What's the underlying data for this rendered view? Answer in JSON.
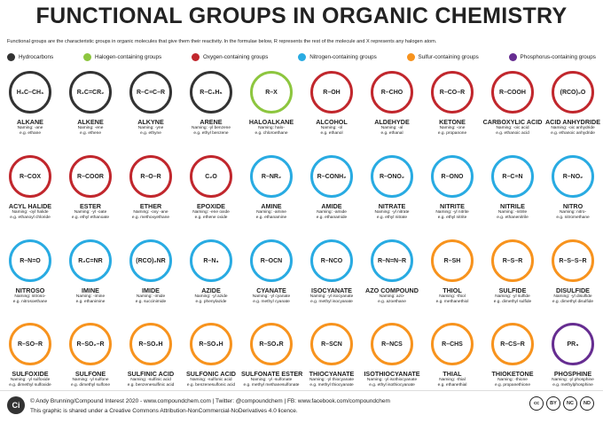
{
  "header": {
    "title": "FUNCTIONAL GROUPS IN ORGANIC CHEMISTRY",
    "subtitle": "Functional groups are the characteristic groups in organic molecules that give them their reactivity. In the formulae below, R represents the rest of the molecule and X represents any halogen atom."
  },
  "legend": [
    {
      "name": "Hydrocarbons",
      "color": "#333333"
    },
    {
      "name": "Halogen-containing groups",
      "color": "#8dc63f"
    },
    {
      "name": "Oxygen-containing groups",
      "color": "#c1272d"
    },
    {
      "name": "Nitrogen-containing groups",
      "color": "#29abe2"
    },
    {
      "name": "Sulfur-containing groups",
      "color": "#f7931e"
    },
    {
      "name": "Phosphorus-containing groups",
      "color": "#662d91"
    }
  ],
  "groups": [
    {
      "name": "ALKANE",
      "formula": "H₃C–CH₃",
      "naming": "Naming: -ane",
      "example": "e.g. ethane",
      "category": 0
    },
    {
      "name": "ALKENE",
      "formula": "R₂C=CR₂",
      "naming": "Naming: -ene",
      "example": "e.g. ethene",
      "category": 0
    },
    {
      "name": "ALKYNE",
      "formula": "R–C≡C–R",
      "naming": "Naming: -yne",
      "example": "e.g. ethyne",
      "category": 0
    },
    {
      "name": "ARENE",
      "formula": "R–C₆H₅",
      "naming": "Naming: -yl benzene",
      "example": "e.g. ethyl benzene",
      "category": 0
    },
    {
      "name": "HALOALKANE",
      "formula": "R–X",
      "naming": "Naming: halo-",
      "example": "e.g. chloroethane",
      "category": 1
    },
    {
      "name": "ALCOHOL",
      "formula": "R–OH",
      "naming": "Naming: -ol",
      "example": "e.g. ethanol",
      "category": 2
    },
    {
      "name": "ALDEHYDE",
      "formula": "R–CHO",
      "naming": "Naming: -al",
      "example": "e.g. ethanal",
      "category": 2
    },
    {
      "name": "KETONE",
      "formula": "R–CO–R",
      "naming": "Naming: -one",
      "example": "e.g. propanone",
      "category": 2
    },
    {
      "name": "CARBOXYLIC ACID",
      "formula": "R–COOH",
      "naming": "Naming: -oic acid",
      "example": "e.g. ethanoic acid",
      "category": 2
    },
    {
      "name": "ACID ANHYDRIDE",
      "formula": "(RCO)₂O",
      "naming": "Naming: -oic anhydride",
      "example": "e.g. ethanoic anhydride",
      "category": 2
    },
    {
      "name": "ACYL HALIDE",
      "formula": "R–COX",
      "naming": "Naming: -oyl halide",
      "example": "e.g. ethanoyl chloride",
      "category": 2
    },
    {
      "name": "ESTER",
      "formula": "R–COOR",
      "naming": "Naming: -yl -oate",
      "example": "e.g. ethyl ethanoate",
      "category": 2
    },
    {
      "name": "ETHER",
      "formula": "R–O–R",
      "naming": "Naming: -oxy -ane",
      "example": "e.g. methoxyethane",
      "category": 2
    },
    {
      "name": "EPOXIDE",
      "formula": "C₂O",
      "naming": "Naming: -ene oxide",
      "example": "e.g. ethene oxide",
      "category": 2
    },
    {
      "name": "AMINE",
      "formula": "R–NR₂",
      "naming": "Naming: -amine",
      "example": "e.g. ethanamine",
      "category": 3
    },
    {
      "name": "AMIDE",
      "formula": "R–CONH₂",
      "naming": "Naming: -amide",
      "example": "e.g. ethanamide",
      "category": 3
    },
    {
      "name": "NITRATE",
      "formula": "R–ONO₂",
      "naming": "Naming: -yl nitrate",
      "example": "e.g. ethyl nitrate",
      "category": 3
    },
    {
      "name": "NITRITE",
      "formula": "R–ONO",
      "naming": "Naming: -yl nitrite",
      "example": "e.g. ethyl nitrite",
      "category": 3
    },
    {
      "name": "NITRILE",
      "formula": "R–C≡N",
      "naming": "Naming: -nitrile",
      "example": "e.g. ethanenitrile",
      "category": 3
    },
    {
      "name": "NITRO",
      "formula": "R–NO₂",
      "naming": "Naming: nitro-",
      "example": "e.g. nitromethane",
      "category": 3
    },
    {
      "name": "NITROSO",
      "formula": "R–N=O",
      "naming": "Naming: nitroso-",
      "example": "e.g. nitrosoethane",
      "category": 3
    },
    {
      "name": "IMINE",
      "formula": "R₂C=NR",
      "naming": "Naming: -imine",
      "example": "e.g. ethanimine",
      "category": 3
    },
    {
      "name": "IMIDE",
      "formula": "(RCO)₂NR",
      "naming": "Naming: -imide",
      "example": "e.g. succinimide",
      "category": 3
    },
    {
      "name": "AZIDE",
      "formula": "R–N₃",
      "naming": "Naming: -yl azide",
      "example": "e.g. phenylazide",
      "category": 3
    },
    {
      "name": "CYANATE",
      "formula": "R–OCN",
      "naming": "Naming: -yl cyanate",
      "example": "e.g. methyl cyanate",
      "category": 3
    },
    {
      "name": "ISOCYANATE",
      "formula": "R–NCO",
      "naming": "Naming: -yl isocyanate",
      "example": "e.g. methyl isocyanate",
      "category": 3
    },
    {
      "name": "AZO COMPOUND",
      "formula": "R–N=N–R",
      "naming": "Naming: azo-",
      "example": "e.g. azoethane",
      "category": 3
    },
    {
      "name": "THIOL",
      "formula": "R–SH",
      "naming": "Naming: -thiol",
      "example": "e.g. methanethiol",
      "category": 4
    },
    {
      "name": "SULFIDE",
      "formula": "R–S–R",
      "naming": "Naming: -yl sulfide",
      "example": "e.g. dimethyl sulfide",
      "category": 4
    },
    {
      "name": "DISULFIDE",
      "formula": "R–S–S–R",
      "naming": "Naming: -yl disulfide",
      "example": "e.g. dimethyl disulfide",
      "category": 4
    },
    {
      "name": "SULFOXIDE",
      "formula": "R–SO–R",
      "naming": "Naming: -yl sulfoxide",
      "example": "e.g. dimethyl sulfoxide",
      "category": 4
    },
    {
      "name": "SULFONE",
      "formula": "R–SO₂–R",
      "naming": "Naming: -yl sulfone",
      "example": "e.g. dimethyl sulfone",
      "category": 4
    },
    {
      "name": "SULFINIC ACID",
      "formula": "R–SO₂H",
      "naming": "Naming: -sulfinic acid",
      "example": "e.g. benzenesulfinic acid",
      "category": 4
    },
    {
      "name": "SULFONIC ACID",
      "formula": "R–SO₃H",
      "naming": "Naming: -sulfonic acid",
      "example": "e.g. benzenesulfonic acid",
      "category": 4
    },
    {
      "name": "SULFONATE ESTER",
      "formula": "R–SO₃R",
      "naming": "Naming: -yl -sulfonate",
      "example": "e.g. methyl methanesulfonate",
      "category": 4
    },
    {
      "name": "THIOCYANATE",
      "formula": "R–SCN",
      "naming": "Naming: -yl thiocyanate",
      "example": "e.g. methyl thiocyanate",
      "category": 4
    },
    {
      "name": "ISOTHIOCYANATE",
      "formula": "R–NCS",
      "naming": "Naming: -yl isothiocyanate",
      "example": "e.g. ethyl isothiocyanate",
      "category": 4
    },
    {
      "name": "THIAL",
      "formula": "R–CHS",
      "naming": "Naming: -thial",
      "example": "e.g. ethanethial",
      "category": 4
    },
    {
      "name": "THIOKETONE",
      "formula": "R–CS–R",
      "naming": "Naming: -thione",
      "example": "e.g. propanethione",
      "category": 4
    },
    {
      "name": "PHOSPHINE",
      "formula": "PR₃",
      "naming": "Naming: -yl phosphine",
      "example": "e.g. methylphosphine",
      "category": 5
    }
  ],
  "footer": {
    "logo": "Ci",
    "credit": "© Andy Brunning/Compound Interest 2020 - www.compoundchem.com | Twitter: @compoundchem | FB: www.facebook.com/compoundchem",
    "licence": "This graphic is shared under a Creative Commons Attribution-NonCommercial-NoDerivatives 4.0 licence.",
    "badges": [
      "cc",
      "BY",
      "NC",
      "ND"
    ]
  }
}
